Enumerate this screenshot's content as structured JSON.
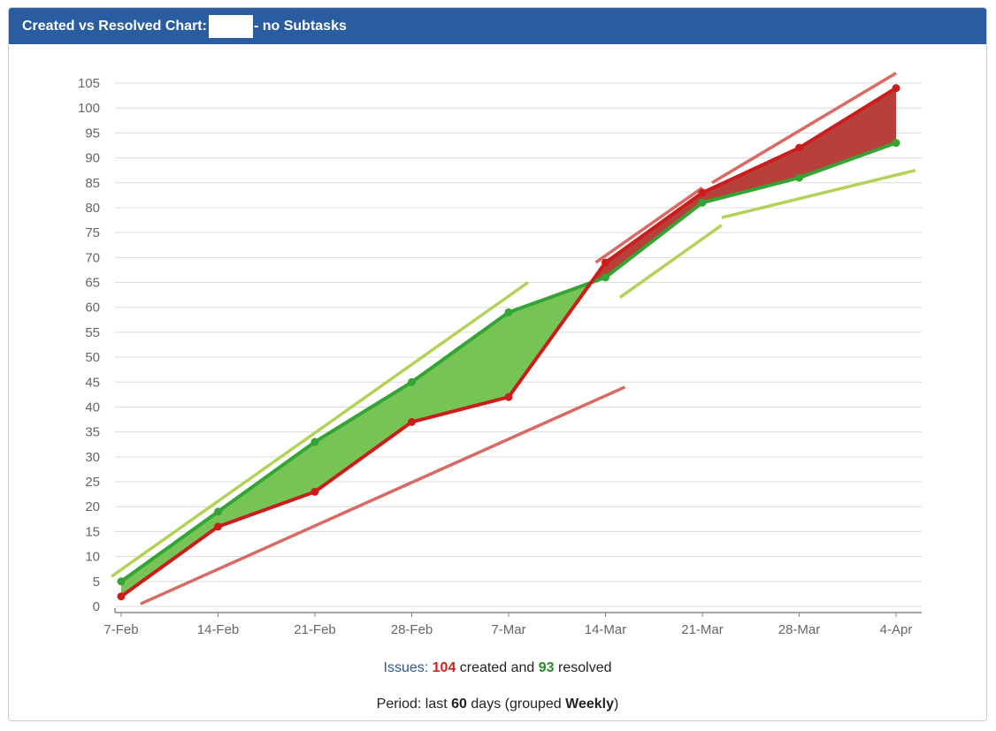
{
  "header": {
    "title_prefix": "Created vs Resolved Chart:",
    "title_suffix": "- no Subtasks"
  },
  "chart_data": {
    "type": "line",
    "title": "",
    "xlabel": "",
    "ylabel": "",
    "ylim": [
      0,
      105
    ],
    "y_ticks": [
      0,
      5,
      10,
      15,
      20,
      25,
      30,
      35,
      40,
      45,
      50,
      55,
      60,
      65,
      70,
      75,
      80,
      85,
      90,
      95,
      100,
      105
    ],
    "x_ticks": [
      "7-Feb",
      "14-Feb",
      "21-Feb",
      "28-Feb",
      "7-Mar",
      "14-Mar",
      "21-Mar",
      "28-Mar",
      "4-Apr"
    ],
    "grid": true,
    "series": [
      {
        "name": "created",
        "color": "#cc1d1d",
        "values": [
          2,
          16,
          23,
          37,
          42,
          69,
          83,
          92,
          104
        ]
      },
      {
        "name": "resolved",
        "color": "#34a534",
        "values": [
          5,
          19,
          33,
          45,
          59,
          66,
          81,
          86,
          93
        ]
      }
    ],
    "fill_colors": {
      "resolved_ahead": "#76c455",
      "created_ahead": "#b8403a"
    },
    "trend_lines": [
      {
        "series": "created",
        "color": "#d9625c",
        "x": [
          0.2,
          5.2
        ],
        "y": [
          0.5,
          44
        ]
      },
      {
        "series": "resolved",
        "color": "#b0d050",
        "x": [
          -0.1,
          4.2
        ],
        "y": [
          6,
          65
        ]
      },
      {
        "series": "created",
        "color": "#d9625c",
        "x": [
          4.9,
          6.0
        ],
        "y": [
          69,
          84
        ]
      },
      {
        "series": "resolved",
        "color": "#b0d050",
        "x": [
          5.15,
          6.2
        ],
        "y": [
          62,
          76.5
        ]
      },
      {
        "series": "created",
        "color": "#d9625c",
        "x": [
          6.1,
          8.0
        ],
        "y": [
          85,
          107
        ]
      },
      {
        "series": "resolved",
        "color": "#b0d050",
        "x": [
          6.2,
          8.2
        ],
        "y": [
          78,
          87.5
        ]
      }
    ]
  },
  "legend": {
    "issues_label": "Issues:",
    "created_count": "104",
    "created_text": "created and",
    "resolved_count": "93",
    "resolved_text": "resolved",
    "period_prefix": "Period: last",
    "period_days": "60",
    "period_mid": "days (grouped",
    "period_group": "Weekly",
    "period_close": ")"
  }
}
